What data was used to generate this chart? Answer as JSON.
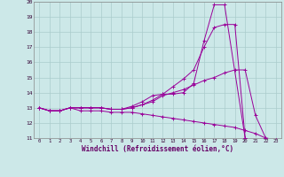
{
  "background_color": "#cce8e8",
  "grid_color": "#aacccc",
  "line_color": "#990099",
  "xlim": [
    -0.5,
    23.5
  ],
  "ylim": [
    11,
    20
  ],
  "xlabel": "Windchill (Refroidissement éolien,°C)",
  "xlabel_fontsize": 5.5,
  "xtick_vals": [
    0,
    1,
    2,
    3,
    4,
    5,
    6,
    7,
    8,
    9,
    10,
    11,
    12,
    13,
    14,
    15,
    16,
    17,
    18,
    19,
    20,
    21,
    22,
    23
  ],
  "ytick_vals": [
    11,
    12,
    13,
    14,
    15,
    16,
    17,
    18,
    19,
    20
  ],
  "series": [
    {
      "x": [
        0,
        1,
        2,
        3,
        4,
        5,
        6,
        7,
        8,
        9,
        10,
        11,
        12,
        13,
        14,
        15,
        16,
        17,
        18,
        20
      ],
      "y": [
        13.0,
        12.8,
        12.8,
        13.0,
        13.0,
        13.0,
        13.0,
        12.9,
        12.9,
        13.1,
        13.4,
        13.8,
        13.9,
        13.9,
        14.0,
        14.6,
        17.4,
        19.8,
        19.8,
        11.0
      ]
    },
    {
      "x": [
        0,
        1,
        2,
        3,
        4,
        5,
        6,
        7,
        8,
        9,
        10,
        11,
        12,
        13,
        14,
        15,
        16,
        17,
        18,
        19,
        20
      ],
      "y": [
        13.0,
        12.8,
        12.8,
        13.0,
        13.0,
        13.0,
        13.0,
        12.9,
        12.9,
        13.0,
        13.2,
        13.5,
        13.9,
        14.4,
        14.9,
        15.5,
        17.0,
        18.3,
        18.5,
        18.5,
        11.0
      ]
    },
    {
      "x": [
        0,
        1,
        2,
        3,
        4,
        5,
        6,
        7,
        8,
        9,
        10,
        11,
        12,
        13,
        14,
        15,
        16,
        17,
        18,
        19,
        20,
        21,
        22,
        23
      ],
      "y": [
        13.0,
        12.8,
        12.8,
        13.0,
        13.0,
        13.0,
        13.0,
        12.9,
        12.9,
        13.0,
        13.2,
        13.4,
        13.8,
        14.0,
        14.2,
        14.5,
        14.8,
        15.0,
        15.3,
        15.5,
        15.5,
        12.5,
        11.0,
        10.9
      ]
    },
    {
      "x": [
        0,
        1,
        2,
        3,
        4,
        5,
        6,
        7,
        8,
        9,
        10,
        11,
        12,
        13,
        14,
        15,
        16,
        17,
        18,
        19,
        20,
        21,
        22,
        23
      ],
      "y": [
        13.0,
        12.8,
        12.8,
        13.0,
        12.8,
        12.8,
        12.8,
        12.7,
        12.7,
        12.7,
        12.6,
        12.5,
        12.4,
        12.3,
        12.2,
        12.1,
        12.0,
        11.9,
        11.8,
        11.7,
        11.5,
        11.3,
        11.0,
        10.9
      ]
    }
  ]
}
